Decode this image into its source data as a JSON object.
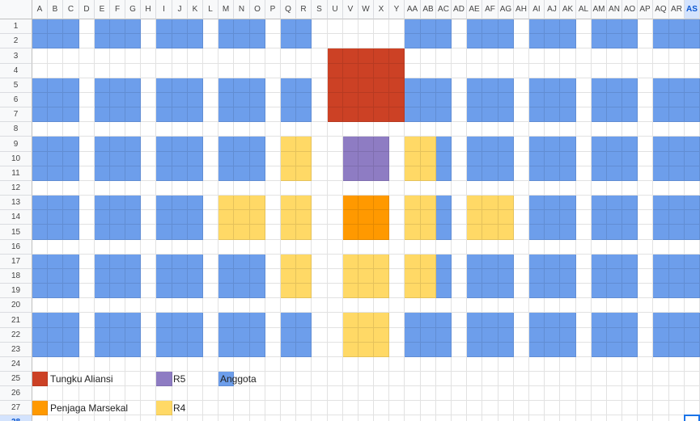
{
  "columns": [
    "A",
    "B",
    "C",
    "D",
    "E",
    "F",
    "G",
    "H",
    "I",
    "J",
    "K",
    "L",
    "M",
    "N",
    "O",
    "P",
    "Q",
    "R",
    "S",
    "U",
    "V",
    "W",
    "X",
    "Y",
    "AA",
    "AB",
    "AC",
    "AD",
    "AE",
    "AF",
    "AG",
    "AH",
    "AI",
    "AJ",
    "AK",
    "AL",
    "AM",
    "AN",
    "AO",
    "AP",
    "AQ",
    "AR",
    "AS"
  ],
  "rows": [
    "1",
    "2",
    "3",
    "4",
    "5",
    "6",
    "7",
    "8",
    "9",
    "10",
    "11",
    "12",
    "13",
    "14",
    "15",
    "16",
    "17",
    "18",
    "19",
    "20",
    "21",
    "22",
    "23",
    "24",
    "25",
    "26",
    "27",
    "28"
  ],
  "selected_cell": {
    "column": "AS",
    "row": "28"
  },
  "colors": {
    "blue": "#6d9eeb",
    "red": "#cc4125",
    "purple": "#8e7cc3",
    "orange": "#ff9900",
    "yellow": "#ffd966"
  },
  "legend": [
    {
      "color": "red",
      "label": "Tungku Aliansi"
    },
    {
      "color": "purple",
      "label": "R5"
    },
    {
      "color": "blue",
      "label": "Anggota"
    },
    {
      "color": "orange",
      "label": "Penjaga Marsekal"
    },
    {
      "color": "yellow",
      "label": "R4"
    }
  ]
}
